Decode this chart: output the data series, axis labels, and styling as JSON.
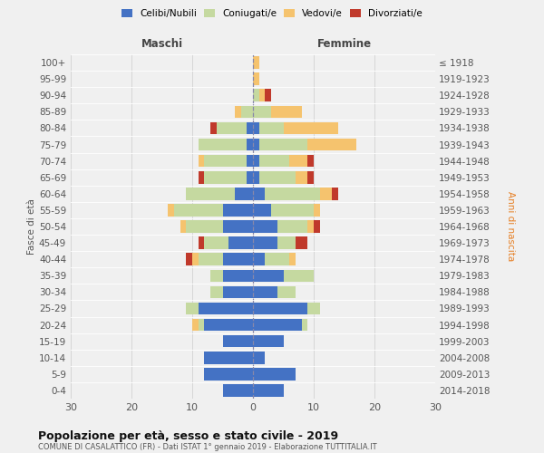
{
  "age_groups": [
    "0-4",
    "5-9",
    "10-14",
    "15-19",
    "20-24",
    "25-29",
    "30-34",
    "35-39",
    "40-44",
    "45-49",
    "50-54",
    "55-59",
    "60-64",
    "65-69",
    "70-74",
    "75-79",
    "80-84",
    "85-89",
    "90-94",
    "95-99",
    "100+"
  ],
  "birth_years": [
    "2014-2018",
    "2009-2013",
    "2004-2008",
    "1999-2003",
    "1994-1998",
    "1989-1993",
    "1984-1988",
    "1979-1983",
    "1974-1978",
    "1969-1973",
    "1964-1968",
    "1959-1963",
    "1954-1958",
    "1949-1953",
    "1944-1948",
    "1939-1943",
    "1934-1938",
    "1929-1933",
    "1924-1928",
    "1919-1923",
    "≤ 1918"
  ],
  "colors": {
    "celibe": "#4472C4",
    "coniugato": "#c5d9a0",
    "vedovo": "#f5c36e",
    "divorziato": "#c0392b"
  },
  "males": {
    "celibe": [
      5,
      8,
      8,
      5,
      8,
      9,
      5,
      5,
      5,
      4,
      5,
      5,
      3,
      1,
      1,
      1,
      1,
      0,
      0,
      0,
      0
    ],
    "coniugato": [
      0,
      0,
      0,
      0,
      1,
      2,
      2,
      2,
      4,
      4,
      6,
      8,
      8,
      7,
      7,
      8,
      5,
      2,
      0,
      0,
      0
    ],
    "vedovo": [
      0,
      0,
      0,
      0,
      1,
      0,
      0,
      0,
      1,
      0,
      1,
      1,
      0,
      0,
      1,
      0,
      0,
      1,
      0,
      0,
      0
    ],
    "divorziato": [
      0,
      0,
      0,
      0,
      0,
      0,
      0,
      0,
      1,
      1,
      0,
      0,
      0,
      1,
      0,
      0,
      1,
      0,
      0,
      0,
      0
    ]
  },
  "females": {
    "celibe": [
      5,
      7,
      2,
      5,
      8,
      9,
      4,
      5,
      2,
      4,
      4,
      3,
      2,
      1,
      1,
      1,
      1,
      0,
      0,
      0,
      0
    ],
    "coniugato": [
      0,
      0,
      0,
      0,
      1,
      2,
      3,
      5,
      4,
      3,
      5,
      7,
      9,
      6,
      5,
      8,
      4,
      3,
      1,
      0,
      0
    ],
    "vedovo": [
      0,
      0,
      0,
      0,
      0,
      0,
      0,
      0,
      1,
      0,
      1,
      1,
      2,
      2,
      3,
      8,
      9,
      5,
      1,
      1,
      1
    ],
    "divorziato": [
      0,
      0,
      0,
      0,
      0,
      0,
      0,
      0,
      0,
      2,
      1,
      0,
      1,
      1,
      1,
      0,
      0,
      0,
      1,
      0,
      0
    ]
  },
  "title": "Popolazione per età, sesso e stato civile - 2019",
  "subtitle": "COMUNE DI CASALATTICO (FR) - Dati ISTAT 1° gennaio 2019 - Elaborazione TUTTITALIA.IT",
  "xlabel_left": "Maschi",
  "xlabel_right": "Femmine",
  "ylabel_left": "Fasce di età",
  "ylabel_right": "Anni di nascita",
  "xlim": 30,
  "legend_labels": [
    "Celibi/Nubili",
    "Coniugati/e",
    "Vedovi/e",
    "Divorziati/e"
  ],
  "bg_color": "#f0f0f0",
  "bar_height": 0.75
}
